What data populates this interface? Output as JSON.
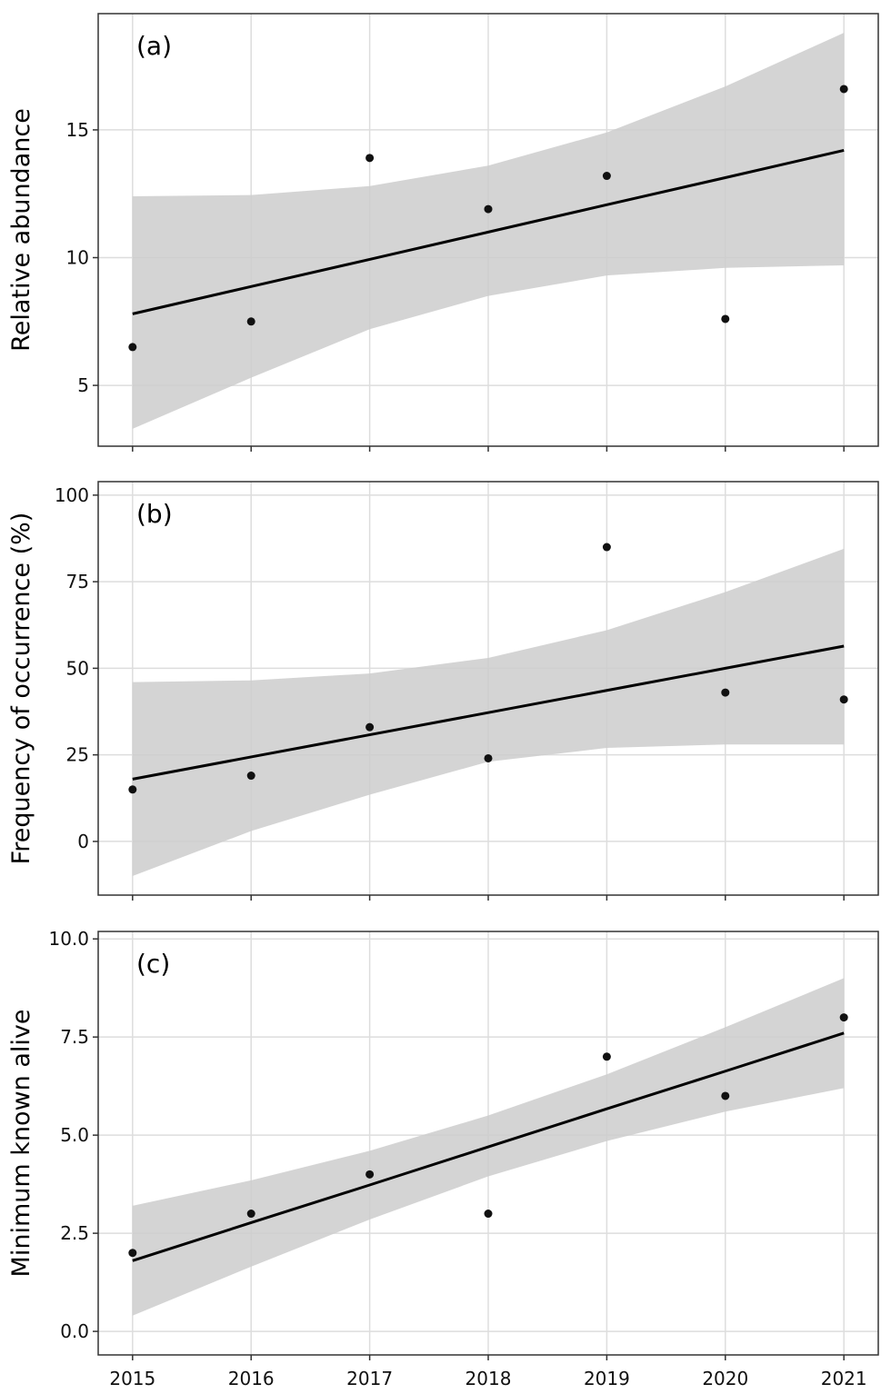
{
  "chart_data": [
    {
      "type": "scatter",
      "panel_label": "(a)",
      "ylabel": "Relative abundance",
      "xlabel": "",
      "x": [
        2015,
        2016,
        2017,
        2018,
        2019,
        2020,
        2021
      ],
      "xlim": [
        2014.71,
        2021.29
      ],
      "ylim": [
        2.62,
        19.55
      ],
      "yticks": [
        5,
        10,
        15
      ],
      "ytick_labels": [
        "5",
        "10",
        "15"
      ],
      "points": [
        6.5,
        7.5,
        13.9,
        11.9,
        13.2,
        7.6,
        16.6
      ],
      "fit_line": [
        7.8,
        8.87,
        9.93,
        11.0,
        12.07,
        13.13,
        14.2
      ],
      "ci_upper": [
        12.4,
        12.45,
        12.8,
        13.6,
        14.9,
        16.7,
        18.8
      ],
      "ci_lower": [
        3.3,
        5.3,
        7.2,
        8.5,
        9.3,
        9.6,
        9.7
      ],
      "grid": true
    },
    {
      "type": "scatter",
      "panel_label": "(b)",
      "ylabel": "Frequency of occurrence (%)",
      "xlabel": "",
      "x": [
        2015,
        2016,
        2017,
        2018,
        2019,
        2020,
        2021
      ],
      "xlim": [
        2014.71,
        2021.29
      ],
      "ylim": [
        -15.5,
        103.9
      ],
      "yticks": [
        0,
        25,
        50,
        75,
        100
      ],
      "ytick_labels": [
        "0",
        "25",
        "50",
        "75",
        "100"
      ],
      "points": [
        15,
        19,
        33,
        24,
        85,
        43,
        41
      ],
      "fit_line": [
        18,
        24.4,
        30.8,
        37.2,
        43.6,
        50,
        56.4
      ],
      "ci_upper": [
        46,
        46.5,
        48.5,
        53,
        61,
        72,
        84.5
      ],
      "ci_lower": [
        -10,
        3,
        13.5,
        23,
        27,
        28,
        28
      ],
      "grid": true
    },
    {
      "type": "scatter",
      "panel_label": "(c)",
      "ylabel": "Minimum known alive",
      "xlabel": "",
      "x": [
        2015,
        2016,
        2017,
        2018,
        2019,
        2020,
        2021
      ],
      "xlim": [
        2014.71,
        2021.29
      ],
      "ylim": [
        -0.6,
        10.19
      ],
      "yticks": [
        0,
        2.5,
        5,
        7.5,
        10
      ],
      "ytick_labels": [
        "0.0",
        "2.5",
        "5.0",
        "7.5",
        "10.0"
      ],
      "xtick_labels": [
        "2015",
        "2016",
        "2017",
        "2018",
        "2019",
        "2020",
        "2021"
      ],
      "points": [
        2,
        3,
        4,
        3,
        7,
        6,
        8
      ],
      "fit_line": [
        1.8,
        2.77,
        3.73,
        4.7,
        5.67,
        6.63,
        7.6
      ],
      "ci_upper": [
        3.2,
        3.85,
        4.6,
        5.5,
        6.55,
        7.75,
        9.0
      ],
      "ci_lower": [
        0.4,
        1.65,
        2.85,
        3.95,
        4.85,
        5.6,
        6.2
      ],
      "grid": true
    }
  ],
  "colors": {
    "band": "#cccccc",
    "line": "#000000",
    "point": "#111111",
    "grid": "#dddddd",
    "frame": "#333333"
  }
}
